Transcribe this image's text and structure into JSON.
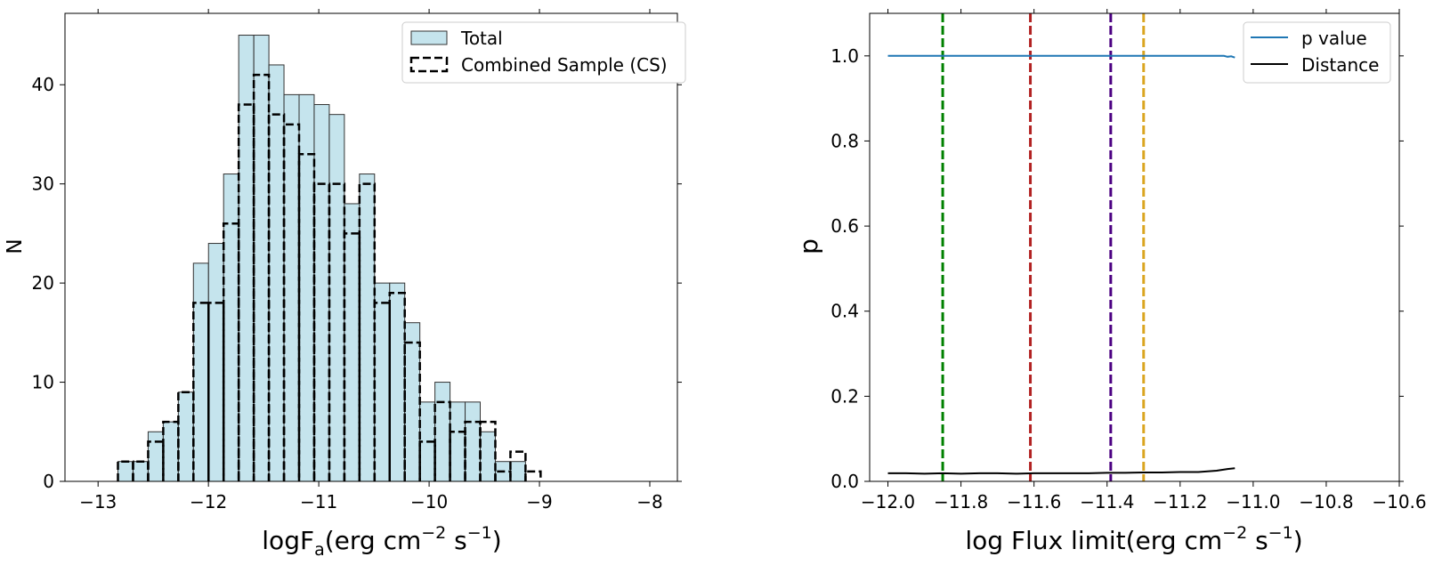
{
  "chart_data": [
    {
      "type": "bar",
      "xlabel_main": "logF",
      "xlabel_sub": "a",
      "xlabel_rest1": "(erg cm",
      "xlabel_sup1": "−2",
      "xlabel_rest2": " s",
      "xlabel_sup2": "−1",
      "xlabel_end": ")",
      "ylabel": "N",
      "xlim": [
        -13.3,
        -7.75
      ],
      "ylim": [
        0,
        47.2
      ],
      "xticks": [
        -13,
        -12,
        -11,
        -10,
        -9,
        -8
      ],
      "xtick_labels": [
        "−13",
        "−12",
        "−11",
        "−10",
        "−9",
        "−8"
      ],
      "yticks": [
        0,
        10,
        20,
        30,
        40
      ],
      "ytick_labels": [
        "0",
        "10",
        "20",
        "30",
        "40"
      ],
      "legend_position": "top-right",
      "legend": [
        "Total",
        "Combined Sample (CS)"
      ],
      "colors": {
        "total_fill": "#add8e6",
        "total_edge": "#333333",
        "cs_line": "#000000"
      },
      "series": [
        {
          "name": "Total",
          "bin_start": -12.82,
          "bin_width": 0.1368,
          "values": [
            2,
            2,
            5,
            6,
            9,
            22,
            24,
            31,
            45,
            45,
            42,
            39,
            39,
            38,
            37,
            28,
            31,
            20,
            20,
            16,
            8,
            10,
            8,
            8,
            5,
            2,
            2,
            0
          ]
        },
        {
          "name": "Combined Sample (CS)",
          "bin_start": -12.82,
          "bin_width": 0.1368,
          "values": [
            2,
            2,
            4,
            6,
            9,
            18,
            18,
            26,
            38,
            41,
            37,
            36,
            33,
            30,
            30,
            25,
            30,
            18,
            19,
            14,
            4,
            8,
            5,
            6,
            6,
            1,
            3,
            1
          ]
        }
      ]
    },
    {
      "type": "line",
      "xlabel_main": "log Flux limit(erg cm",
      "xlabel_sup1": "−2",
      "xlabel_rest2": " s",
      "xlabel_sup2": "−1",
      "xlabel_end": ")",
      "ylabel": "p",
      "xlim": [
        -12.05,
        -10.6
      ],
      "ylim": [
        0,
        1.1
      ],
      "xticks": [
        -12.0,
        -11.8,
        -11.6,
        -11.4,
        -11.2,
        -11.0,
        -10.8,
        -10.6
      ],
      "xtick_labels": [
        "−12.0",
        "−11.8",
        "−11.6",
        "−11.4",
        "−11.2",
        "−11.0",
        "−10.8",
        "−10.6"
      ],
      "yticks": [
        0.0,
        0.2,
        0.4,
        0.6,
        0.8,
        1.0
      ],
      "ytick_labels": [
        "0.0",
        "0.2",
        "0.4",
        "0.6",
        "0.8",
        "1.0"
      ],
      "legend_position": "top-right",
      "legend": [
        "p value",
        "Distance"
      ],
      "series": [
        {
          "name": "p value",
          "color": "#1f77b4",
          "x": [
            -12.0,
            -11.8,
            -11.6,
            -11.4,
            -11.2,
            -11.1,
            -11.08,
            -11.07,
            -11.06,
            -11.05
          ],
          "y": [
            1.0,
            1.0,
            1.0,
            1.0,
            1.0,
            1.0,
            1.0,
            0.998,
            0.999,
            0.996
          ]
        },
        {
          "name": "Distance",
          "color": "#000000",
          "x": [
            -12.0,
            -11.95,
            -11.9,
            -11.85,
            -11.8,
            -11.75,
            -11.7,
            -11.65,
            -11.6,
            -11.55,
            -11.5,
            -11.45,
            -11.4,
            -11.35,
            -11.3,
            -11.25,
            -11.2,
            -11.15,
            -11.1,
            -11.07,
            -11.05
          ],
          "y": [
            0.019,
            0.019,
            0.018,
            0.019,
            0.018,
            0.019,
            0.019,
            0.018,
            0.019,
            0.019,
            0.019,
            0.019,
            0.02,
            0.02,
            0.021,
            0.021,
            0.022,
            0.022,
            0.025,
            0.029,
            0.031
          ]
        }
      ],
      "vlines": [
        {
          "x": -11.85,
          "color": "#008000"
        },
        {
          "x": -11.61,
          "color": "#b22222"
        },
        {
          "x": -11.39,
          "color": "#4b0082"
        },
        {
          "x": -11.3,
          "color": "#daa520"
        }
      ]
    }
  ]
}
